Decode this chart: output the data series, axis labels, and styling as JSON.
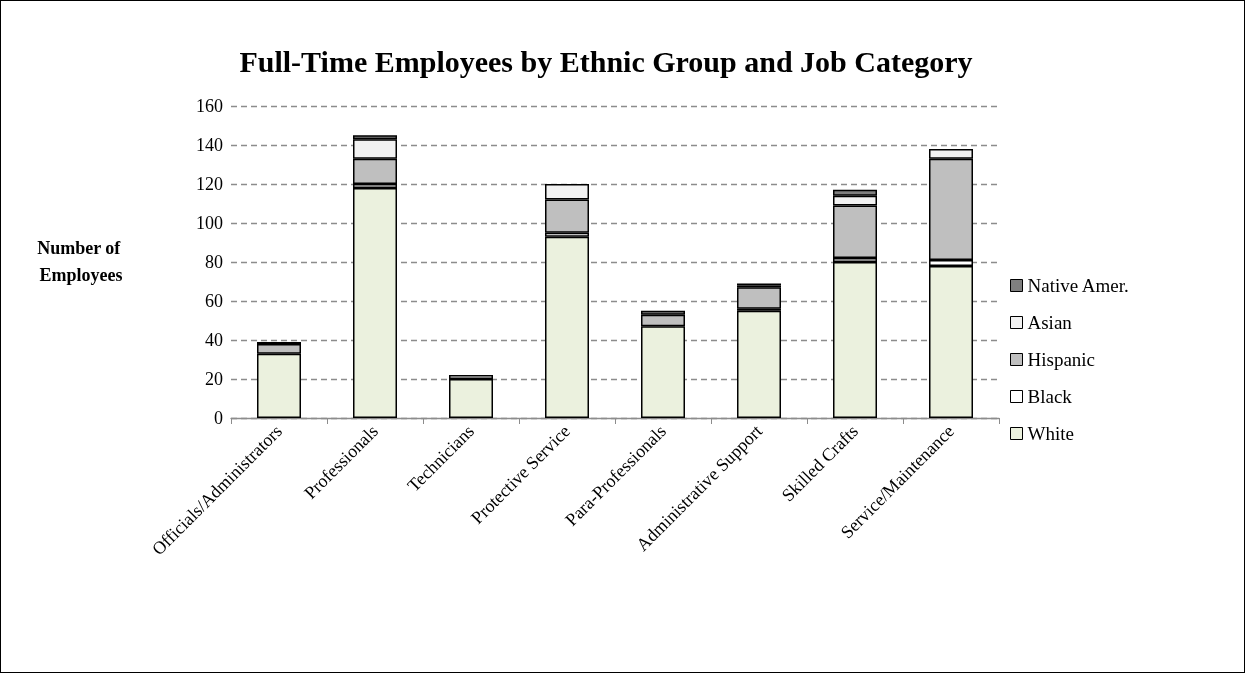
{
  "chart_data": {
    "type": "bar",
    "title": "Full-Time Employees by Ethnic Group and Job Category",
    "ylabel": "Number of Employees",
    "categories": [
      "Officials/Administrators",
      "Professionals",
      "Technicians",
      "Protective Service",
      "Para-Professionals",
      "Administrative Support",
      "Skilled Crafts",
      "Service/Maintenance"
    ],
    "stacked": true,
    "series": [
      {
        "name": "White",
        "color": "#ebf1de",
        "values": [
          33,
          118,
          20,
          93,
          47,
          55,
          80,
          78
        ]
      },
      {
        "name": "Black",
        "color": "#ffffff",
        "values": [
          0,
          2,
          0,
          2,
          0,
          1,
          2,
          3
        ]
      },
      {
        "name": "Hispanic",
        "color": "#bfbfbf",
        "values": [
          5,
          13,
          0,
          17,
          6,
          11,
          27,
          52
        ]
      },
      {
        "name": "Asian",
        "color": "#f2f2f2",
        "values": [
          0,
          10,
          2,
          8,
          0,
          1,
          5,
          5
        ]
      },
      {
        "name": "Native Amer.",
        "color": "#7f7f7f",
        "values": [
          1,
          2,
          0,
          0,
          2,
          1,
          3,
          0
        ]
      }
    ],
    "ylim": [
      0,
      160
    ],
    "yticks": [
      0,
      20,
      40,
      60,
      80,
      100,
      120,
      140,
      160
    ],
    "grid": "y",
    "legend": "right"
  }
}
